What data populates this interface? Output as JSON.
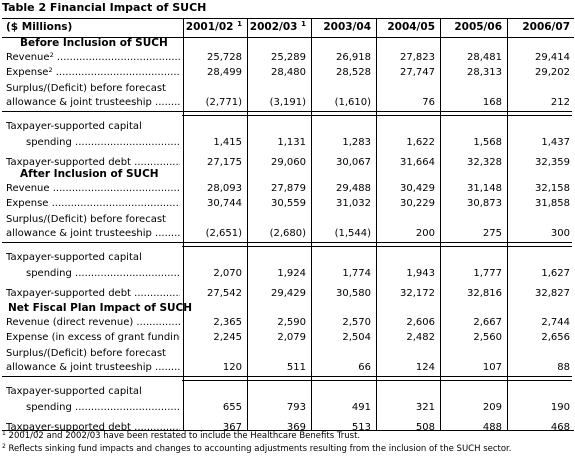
{
  "title": "Table 2  Financial Impact of SUCH",
  "header": {
    "units": "($ Millions)",
    "years": [
      {
        "label": "2001/02",
        "sup": "1"
      },
      {
        "label": "2002/03",
        "sup": "1"
      },
      {
        "label": "2003/04",
        "sup": ""
      },
      {
        "label": "2004/05",
        "sup": ""
      },
      {
        "label": "2005/06",
        "sup": ""
      },
      {
        "label": "2006/07",
        "sup": ""
      }
    ]
  },
  "sections": [
    {
      "heading": "Before Inclusion of SUCH",
      "rows": [
        {
          "label": "Revenue",
          "sup": "2",
          "values": [
            "25,728",
            "25,289",
            "26,918",
            "27,823",
            "28,481",
            "29,414"
          ]
        },
        {
          "label": "Expense",
          "sup": "2",
          "values": [
            "28,499",
            "28,480",
            "28,528",
            "27,747",
            "28,313",
            "29,202"
          ]
        },
        {
          "label": "Surplus/(Deficit) before forecast",
          "sup": "",
          "values": []
        },
        {
          "label": "allowance & joint trusteeship",
          "sup": "",
          "values": [
            "(2,771)",
            "(3,191)",
            "(1,610)",
            "76",
            "168",
            "212"
          ]
        },
        {
          "label": "Taxpayer-supported capital",
          "sup": "",
          "values": []
        },
        {
          "label": "spending",
          "sup": "",
          "values": [
            "1,415",
            "1,131",
            "1,283",
            "1,622",
            "1,568",
            "1,437"
          ]
        },
        {
          "label": "Taxpayer-supported debt",
          "sup": "",
          "values": [
            "27,175",
            "29,060",
            "30,067",
            "31,664",
            "32,328",
            "32,359"
          ]
        }
      ]
    },
    {
      "heading": "After Inclusion of SUCH",
      "rows": [
        {
          "label": "Revenue",
          "sup": "",
          "values": [
            "28,093",
            "27,879",
            "29,488",
            "30,429",
            "31,148",
            "32,158"
          ]
        },
        {
          "label": "Expense",
          "sup": "",
          "values": [
            "30,744",
            "30,559",
            "31,032",
            "30,229",
            "30,873",
            "31,858"
          ]
        },
        {
          "label": "Surplus/(Deficit) before forecast",
          "sup": "",
          "values": []
        },
        {
          "label": "allowance & joint trusteeship",
          "sup": "",
          "values": [
            "(2,651)",
            "(2,680)",
            "(1,544)",
            "200",
            "275",
            "300"
          ]
        },
        {
          "label": "Taxpayer-supported capital",
          "sup": "",
          "values": []
        },
        {
          "label": "spending",
          "sup": "",
          "values": [
            "2,070",
            "1,924",
            "1,774",
            "1,943",
            "1,777",
            "1,627"
          ]
        },
        {
          "label": "Taxpayer-supported debt",
          "sup": "",
          "values": [
            "27,542",
            "29,429",
            "30,580",
            "32,172",
            "32,816",
            "32,827"
          ]
        }
      ]
    },
    {
      "heading": "Net Fiscal Plan Impact of SUCH",
      "rows": [
        {
          "label": "Revenue (direct revenue)",
          "sup": "",
          "values": [
            "2,365",
            "2,590",
            "2,570",
            "2,606",
            "2,667",
            "2,744"
          ]
        },
        {
          "label": "Expense (in excess of grant funding).",
          "sup": "",
          "values": [
            "2,245",
            "2,079",
            "2,504",
            "2,482",
            "2,560",
            "2,656"
          ]
        },
        {
          "label": "Surplus/(Deficit) before forecast",
          "sup": "",
          "values": []
        },
        {
          "label": "allowance & joint trusteeship",
          "sup": "",
          "values": [
            "120",
            "511",
            "66",
            "124",
            "107",
            "88"
          ]
        },
        {
          "label": "Taxpayer-supported capital",
          "sup": "",
          "values": []
        },
        {
          "label": "spending",
          "sup": "",
          "values": [
            "655",
            "793",
            "491",
            "321",
            "209",
            "190"
          ]
        },
        {
          "label": "Taxpayer-supported debt",
          "sup": "",
          "values": [
            "367",
            "369",
            "513",
            "508",
            "488",
            "468"
          ]
        }
      ]
    }
  ],
  "footnotes": [
    {
      "sup": "1",
      "text": "2001/02 and 2002/03 have been restated to include the Healthcare Benefits Trust."
    },
    {
      "sup": "2",
      "text": "Reflects sinking fund impacts and changes to accounting adjustments resulting from the inclusion of the SUCH sector."
    }
  ]
}
